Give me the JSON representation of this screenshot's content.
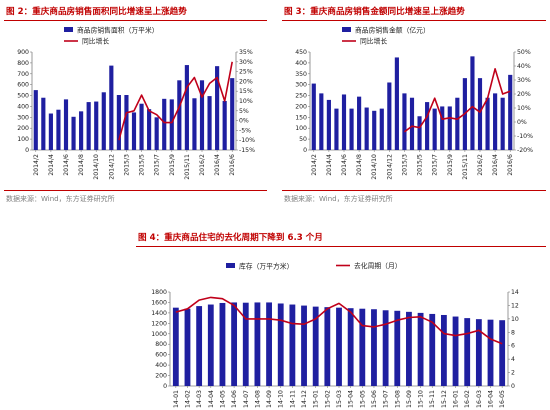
{
  "figures": {
    "fig2_title": "图 2：重庆商品房销售面积同比增速呈上涨趋势",
    "fig3_title": "图 3：重庆商品房销售金额同比增速呈上涨趋势",
    "fig4_title": "图 4：重庆商品住宅的去化周期下降到 6.3 个月",
    "source": "数据来源：Wind，东方证券研究所"
  },
  "colors": {
    "bar": "#1f1fa0",
    "line": "#c0001a",
    "title": "#c00000",
    "axis": "#808080"
  },
  "chart_data": [
    {
      "type": "bar",
      "title": "",
      "legend": {
        "bar": "商品房销售面积（万平米）",
        "line": "同比增长",
        "position": "top"
      },
      "x_tick_labels": [
        "2014/2",
        "2014/4",
        "2014/6",
        "2014/8",
        "2014/10",
        "2014/12",
        "2015/3",
        "2015/5",
        "2015/7",
        "2015/9",
        "2015/11",
        "2016/2",
        "2016/4",
        "2016/6"
      ],
      "series": [
        {
          "name": "商品房销售面积（万平米）",
          "axis": "left",
          "type": "bar",
          "values": [
            550,
            480,
            335,
            370,
            465,
            305,
            355,
            440,
            445,
            530,
            775,
            505,
            505,
            345,
            425,
            375,
            300,
            470,
            465,
            640,
            780,
            475,
            640,
            495,
            770,
            450,
            660
          ]
        },
        {
          "name": "同比增长",
          "axis": "right",
          "type": "line",
          "values": [
            null,
            null,
            null,
            null,
            null,
            null,
            null,
            null,
            null,
            null,
            null,
            -10,
            4,
            5,
            13,
            5,
            3,
            -1,
            -1,
            7,
            17,
            22,
            12,
            19,
            22,
            10,
            30
          ]
        }
      ],
      "y_left": {
        "min": 0,
        "max": 900,
        "step": 100,
        "tick_labels": [
          "0",
          "100",
          "200",
          "300",
          "400",
          "500",
          "600",
          "700",
          "800",
          "900"
        ]
      },
      "y_right": {
        "min": -15,
        "max": 35,
        "step": 5,
        "tick_labels": [
          "-15%",
          "-10%",
          "-5%",
          "0%",
          "5%",
          "10%",
          "15%",
          "20%",
          "25%",
          "30%",
          "35%"
        ]
      }
    },
    {
      "type": "bar",
      "title": "",
      "legend": {
        "bar": "商品房销售金额（亿元）",
        "line": "同比增长",
        "position": "top"
      },
      "x_tick_labels": [
        "2014/2",
        "2014/4",
        "2014/6",
        "2014/8",
        "2014/10",
        "2014/12",
        "2015/3",
        "2015/5",
        "2015/7",
        "2015/9",
        "2015/11",
        "2016/2",
        "2016/4",
        "2016/6"
      ],
      "series": [
        {
          "name": "商品房销售金额（亿元）",
          "axis": "left",
          "type": "bar",
          "values": [
            305,
            260,
            230,
            190,
            255,
            190,
            245,
            195,
            180,
            190,
            310,
            425,
            260,
            240,
            155,
            220,
            190,
            200,
            200,
            240,
            330,
            430,
            330,
            240,
            260,
            240,
            345
          ]
        },
        {
          "name": "同比增长",
          "axis": "right",
          "type": "line",
          "values": [
            null,
            null,
            null,
            null,
            null,
            null,
            null,
            null,
            null,
            null,
            null,
            null,
            -7,
            -3,
            -4,
            4,
            17,
            2,
            3,
            2,
            6,
            11,
            7,
            17,
            38,
            20,
            22
          ]
        }
      ],
      "y_left": {
        "min": 0,
        "max": 450,
        "step": 50,
        "tick_labels": [
          "0",
          "50",
          "100",
          "150",
          "200",
          "250",
          "300",
          "350",
          "400",
          "450"
        ]
      },
      "y_right": {
        "min": -20,
        "max": 50,
        "step": 10,
        "tick_labels": [
          "-20%",
          "-10%",
          "0%",
          "10%",
          "20%",
          "30%",
          "40%",
          "50%"
        ]
      }
    },
    {
      "type": "bar",
      "title": "",
      "legend": {
        "bar": "库存（万平方米）",
        "line": "去化周期（月）",
        "position": "top"
      },
      "x_tick_labels": [
        "14-01",
        "14-02",
        "14-03",
        "14-04",
        "14-05",
        "14-06",
        "14-07",
        "14-08",
        "14-09",
        "14-10",
        "14-11",
        "14-12",
        "15-01",
        "15-02",
        "15-03",
        "15-04",
        "15-05",
        "15-06",
        "15-07",
        "15-08",
        "15-09",
        "15-10",
        "15-11",
        "15-12",
        "16-01",
        "16-02",
        "16-03",
        "16-04",
        "16-05"
      ],
      "series": [
        {
          "name": "库存（万平方米）",
          "axis": "left",
          "type": "bar",
          "values": [
            1500,
            1480,
            1530,
            1560,
            1590,
            1600,
            1595,
            1600,
            1600,
            1580,
            1560,
            1540,
            1520,
            1510,
            1500,
            1490,
            1480,
            1470,
            1450,
            1440,
            1420,
            1400,
            1380,
            1360,
            1330,
            1300,
            1280,
            1270,
            1260
          ]
        },
        {
          "name": "去化周期（月）",
          "axis": "right",
          "type": "line",
          "values": [
            11,
            11.5,
            12.8,
            13.2,
            13,
            12,
            10,
            10,
            10,
            9.8,
            9.3,
            9.2,
            10,
            11.5,
            12.3,
            11,
            9,
            8.8,
            9.2,
            9.8,
            10.2,
            10.3,
            9.5,
            7.8,
            7.5,
            7.8,
            8.3,
            7,
            6.3
          ]
        }
      ],
      "y_left": {
        "min": 0,
        "max": 1800,
        "step": 200,
        "tick_labels": [
          "0",
          "200",
          "400",
          "600",
          "800",
          "1000",
          "1200",
          "1400",
          "1600",
          "1800"
        ]
      },
      "y_right": {
        "min": 0,
        "max": 14,
        "step": 2,
        "tick_labels": [
          "0",
          "2",
          "4",
          "6",
          "8",
          "10",
          "12",
          "14"
        ]
      }
    }
  ]
}
